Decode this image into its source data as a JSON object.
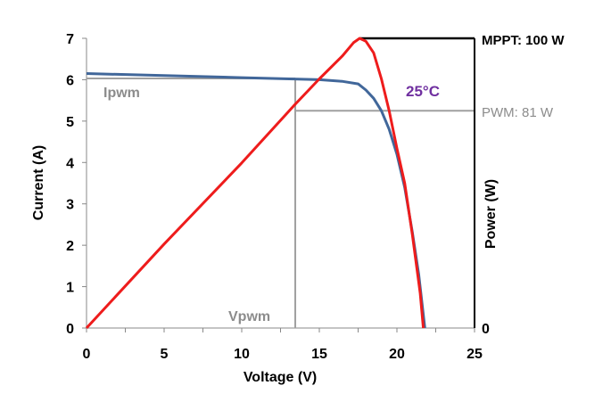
{
  "chart_data": {
    "type": "line",
    "xlabel": "Voltage (V)",
    "ylabel": "Current (A)",
    "y2label": "Power (W)",
    "xlim": [
      0,
      25
    ],
    "ylim": [
      0,
      7
    ],
    "y2lim": [
      0,
      100
    ],
    "xticks": [
      "0",
      "5",
      "10",
      "15",
      "20",
      "25"
    ],
    "yticks": [
      "0",
      "1",
      "2",
      "3",
      "4",
      "5",
      "6",
      "7"
    ],
    "y2ticks": [
      "0"
    ],
    "grid": false,
    "series": [
      {
        "axis": "left",
        "color": "#41679a",
        "x": [
          0,
          5,
          10,
          15,
          16.5,
          17.5,
          18,
          18.5,
          19,
          19.5,
          20,
          20.5,
          21,
          21.4,
          21.8
        ],
        "y": [
          6.15,
          6.1,
          6.05,
          6.0,
          5.96,
          5.9,
          5.75,
          5.55,
          5.25,
          4.8,
          4.2,
          3.4,
          2.3,
          1.3,
          0
        ]
      },
      {
        "axis": "right",
        "color": "#ee1c1c",
        "x": [
          0,
          5,
          10,
          13.4,
          15,
          16.5,
          17.2,
          17.6,
          18,
          18.5,
          19,
          19.5,
          20,
          20.5,
          21,
          21.5,
          21.7
        ],
        "y": [
          0,
          29,
          57,
          77,
          86,
          94,
          98.5,
          100,
          99,
          95,
          86,
          75,
          62,
          50,
          32,
          12,
          0
        ]
      }
    ],
    "annotations": {
      "mppt_label": "MPPT: 100 W",
      "pwm_label": "PWM: 81 W",
      "temperature": "25°C",
      "ipwm_label": "Ipwm",
      "vpwm_label": "Vpwm",
      "v_pwm": 13.45,
      "i_pwm": 6.03,
      "p_pwm_line": 75,
      "v_mpp": 17.6,
      "p_mpp": 100
    },
    "colors": {
      "mppt": "#000000",
      "pwm": "#a0a0a0",
      "temperature": "#7030a0",
      "label_gray": "#8c8c8c"
    }
  }
}
